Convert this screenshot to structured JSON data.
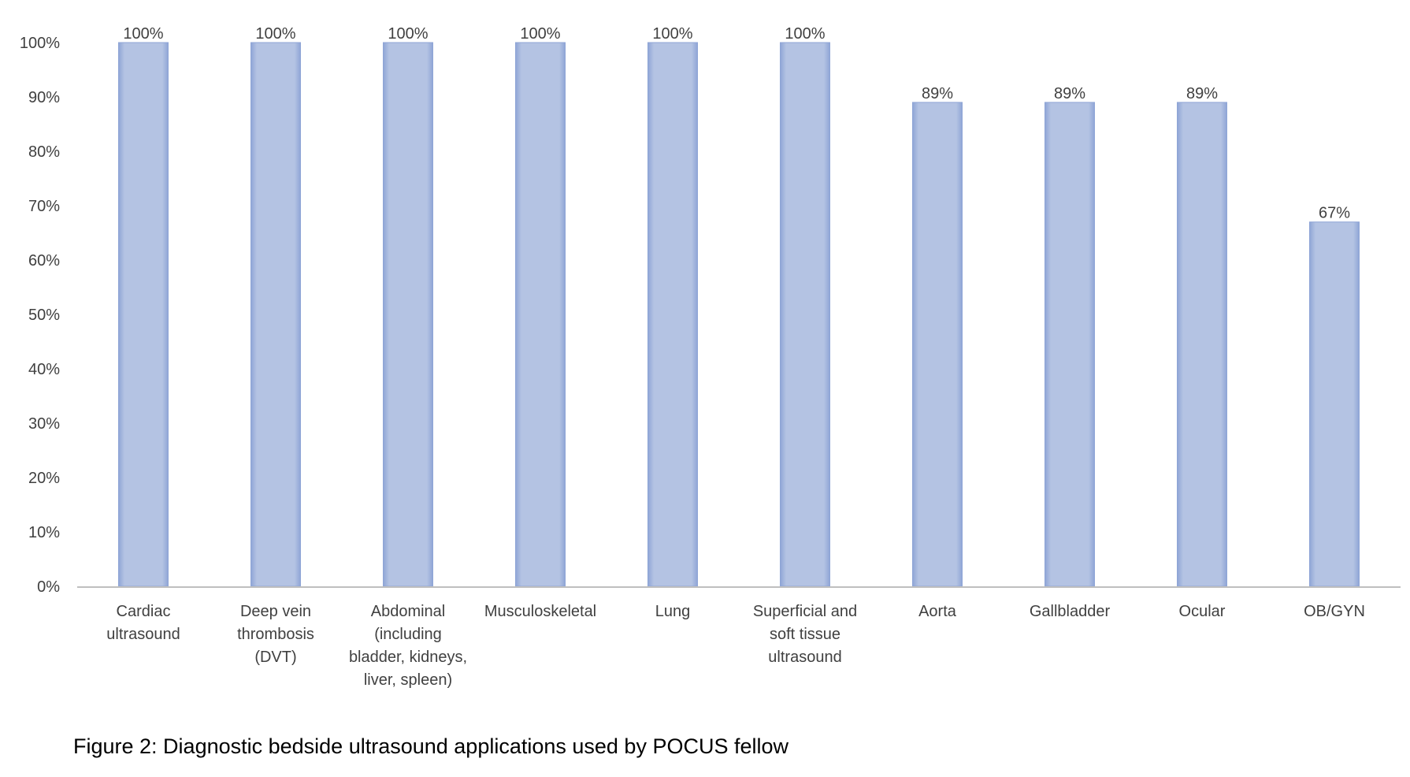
{
  "caption": "Figure 2: Diagnostic bedside ultrasound applications used by POCUS fellow",
  "colors": {
    "bar_fill": "#b4c3e3",
    "bar_edge": "#8fa5d6",
    "axis": "#bfbfbf",
    "text": "#404040"
  },
  "chart_data": {
    "type": "bar",
    "title": "",
    "xlabel": "",
    "ylabel": "",
    "ylim": [
      0,
      1
    ],
    "grid": false,
    "legend": "none",
    "y_ticks": [
      {
        "value": 0,
        "label": "0%"
      },
      {
        "value": 0.1,
        "label": "10%"
      },
      {
        "value": 0.2,
        "label": "20%"
      },
      {
        "value": 0.3,
        "label": "30%"
      },
      {
        "value": 0.4,
        "label": "40%"
      },
      {
        "value": 0.5,
        "label": "50%"
      },
      {
        "value": 0.6,
        "label": "60%"
      },
      {
        "value": 0.7,
        "label": "70%"
      },
      {
        "value": 0.8,
        "label": "80%"
      },
      {
        "value": 0.9,
        "label": "90%"
      },
      {
        "value": 1,
        "label": "100%"
      }
    ],
    "categories": [
      [
        "Cardiac",
        "ultrasound"
      ],
      [
        "Deep vein",
        "thrombosis",
        "(DVT)"
      ],
      [
        "Abdominal",
        "(including",
        "bladder, kidneys,",
        "liver, spleen)"
      ],
      [
        "Musculoskeletal"
      ],
      [
        "Lung"
      ],
      [
        "Superficial and",
        "soft tissue",
        "ultrasound"
      ],
      [
        "Aorta"
      ],
      [
        "Gallbladder"
      ],
      [
        "Ocular"
      ],
      [
        "OB/GYN"
      ]
    ],
    "values": [
      1.0,
      1.0,
      1.0,
      1.0,
      1.0,
      1.0,
      0.89,
      0.89,
      0.89,
      0.67
    ],
    "data_labels": [
      "100%",
      "100%",
      "100%",
      "100%",
      "100%",
      "100%",
      "89%",
      "89%",
      "89%",
      "67%"
    ]
  }
}
